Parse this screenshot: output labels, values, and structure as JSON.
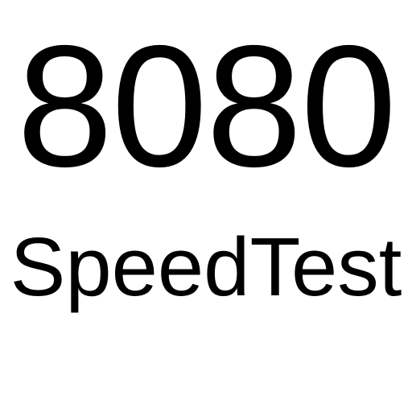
{
  "logo": {
    "port_text": "8080",
    "name_text": "SpeedTest",
    "text_color": "#000000",
    "background_color": "#ffffff"
  }
}
